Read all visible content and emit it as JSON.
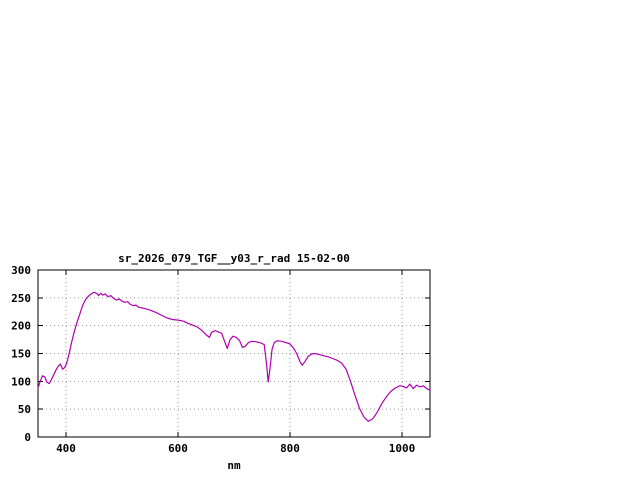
{
  "chart_data": {
    "type": "line",
    "title": "sr_2026_079_TGF__y03_r_rad 15-02-00",
    "xlabel": "nm",
    "ylabel": "",
    "xlim": [
      350,
      1050
    ],
    "ylim": [
      0,
      300
    ],
    "x_ticks": [
      400,
      600,
      800,
      1000
    ],
    "y_ticks": [
      0,
      50,
      100,
      150,
      200,
      250,
      300
    ],
    "grid": true,
    "legend": "none",
    "line_color": "#b000b0",
    "series": [
      {
        "name": "sr_2026_079_TGF__y03_r_rad",
        "points": [
          [
            350,
            88
          ],
          [
            354,
            100
          ],
          [
            358,
            110
          ],
          [
            362,
            108
          ],
          [
            366,
            98
          ],
          [
            370,
            96
          ],
          [
            374,
            103
          ],
          [
            378,
            112
          ],
          [
            382,
            120
          ],
          [
            386,
            127
          ],
          [
            390,
            131
          ],
          [
            394,
            122
          ],
          [
            398,
            125
          ],
          [
            402,
            135
          ],
          [
            406,
            152
          ],
          [
            410,
            170
          ],
          [
            415,
            190
          ],
          [
            420,
            207
          ],
          [
            425,
            222
          ],
          [
            430,
            237
          ],
          [
            435,
            247
          ],
          [
            440,
            253
          ],
          [
            445,
            257
          ],
          [
            450,
            260
          ],
          [
            455,
            258
          ],
          [
            458,
            254
          ],
          [
            462,
            258
          ],
          [
            466,
            255
          ],
          [
            470,
            257
          ],
          [
            475,
            252
          ],
          [
            480,
            254
          ],
          [
            485,
            249
          ],
          [
            490,
            246
          ],
          [
            495,
            248
          ],
          [
            500,
            244
          ],
          [
            505,
            242
          ],
          [
            510,
            243
          ],
          [
            515,
            238
          ],
          [
            520,
            236
          ],
          [
            525,
            237
          ],
          [
            530,
            233
          ],
          [
            540,
            231
          ],
          [
            550,
            228
          ],
          [
            560,
            224
          ],
          [
            570,
            219
          ],
          [
            580,
            214
          ],
          [
            590,
            211
          ],
          [
            600,
            210
          ],
          [
            610,
            208
          ],
          [
            618,
            204
          ],
          [
            626,
            201
          ],
          [
            634,
            198
          ],
          [
            642,
            192
          ],
          [
            650,
            184
          ],
          [
            656,
            179
          ],
          [
            660,
            188
          ],
          [
            666,
            191
          ],
          [
            672,
            189
          ],
          [
            678,
            186
          ],
          [
            684,
            170
          ],
          [
            688,
            159
          ],
          [
            693,
            175
          ],
          [
            698,
            181
          ],
          [
            704,
            179
          ],
          [
            710,
            173
          ],
          [
            715,
            161
          ],
          [
            720,
            163
          ],
          [
            726,
            170
          ],
          [
            732,
            172
          ],
          [
            740,
            171
          ],
          [
            748,
            169
          ],
          [
            754,
            166
          ],
          [
            758,
            132
          ],
          [
            761,
            99
          ],
          [
            764,
            120
          ],
          [
            768,
            158
          ],
          [
            772,
            170
          ],
          [
            778,
            173
          ],
          [
            785,
            172
          ],
          [
            792,
            170
          ],
          [
            800,
            167
          ],
          [
            806,
            160
          ],
          [
            812,
            150
          ],
          [
            818,
            135
          ],
          [
            822,
            129
          ],
          [
            827,
            136
          ],
          [
            832,
            144
          ],
          [
            838,
            149
          ],
          [
            845,
            150
          ],
          [
            852,
            148
          ],
          [
            860,
            146
          ],
          [
            868,
            144
          ],
          [
            876,
            141
          ],
          [
            884,
            138
          ],
          [
            892,
            133
          ],
          [
            900,
            122
          ],
          [
            908,
            100
          ],
          [
            916,
            75
          ],
          [
            924,
            52
          ],
          [
            932,
            36
          ],
          [
            940,
            28
          ],
          [
            948,
            33
          ],
          [
            956,
            45
          ],
          [
            964,
            60
          ],
          [
            972,
            72
          ],
          [
            980,
            82
          ],
          [
            988,
            88
          ],
          [
            996,
            92
          ],
          [
            1002,
            91
          ],
          [
            1008,
            88
          ],
          [
            1014,
            95
          ],
          [
            1020,
            87
          ],
          [
            1026,
            93
          ],
          [
            1032,
            90
          ],
          [
            1038,
            92
          ],
          [
            1044,
            87
          ],
          [
            1050,
            84
          ]
        ]
      }
    ]
  }
}
